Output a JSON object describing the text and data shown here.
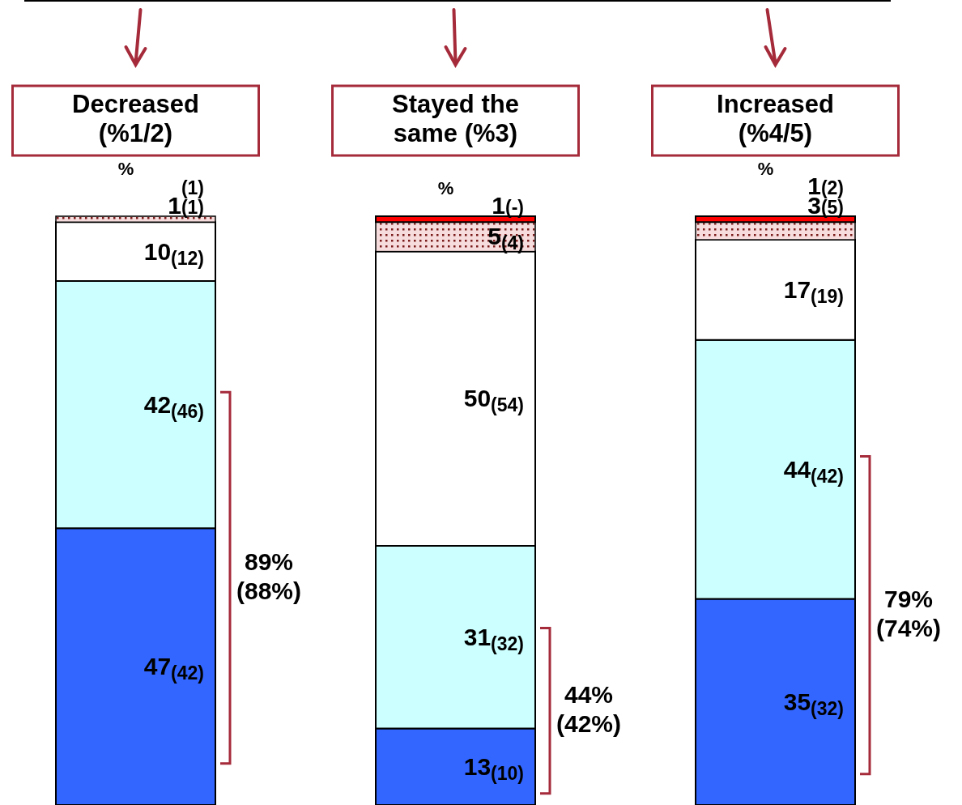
{
  "chart_data": {
    "type": "bar",
    "stacked": true,
    "categories": [
      "Decreased (%1/2)",
      "Stayed the same (%3)",
      "Increased (%4/5)"
    ],
    "series": [
      {
        "color": "#3366ff",
        "values": [
          47,
          13,
          35
        ],
        "value_labels": [
          "47(42)",
          "13(10)",
          "35(32)"
        ]
      },
      {
        "color": "#ccffff",
        "values": [
          42,
          31,
          44
        ],
        "value_labels": [
          "42(46)",
          "31(32)",
          "44(42)"
        ]
      },
      {
        "color": "#ffffff",
        "values": [
          10,
          50,
          17
        ],
        "value_labels": [
          "10(12)",
          "50(54)",
          "17(19)"
        ]
      },
      {
        "color": "#f6dcdc",
        "values": [
          1,
          5,
          3
        ],
        "value_labels": [
          "1(1)",
          "5(4)",
          "3(5)"
        ]
      },
      {
        "color": "#ff0000",
        "values": [
          null,
          1,
          1
        ],
        "value_labels": [
          "(1)",
          "1(-)",
          "1(2)"
        ]
      }
    ],
    "annotations": [
      "%",
      "%",
      "%",
      "89% (88%)",
      "44% (42%)",
      "79% (74%)"
    ],
    "grid": false,
    "legend": false
  }
}
